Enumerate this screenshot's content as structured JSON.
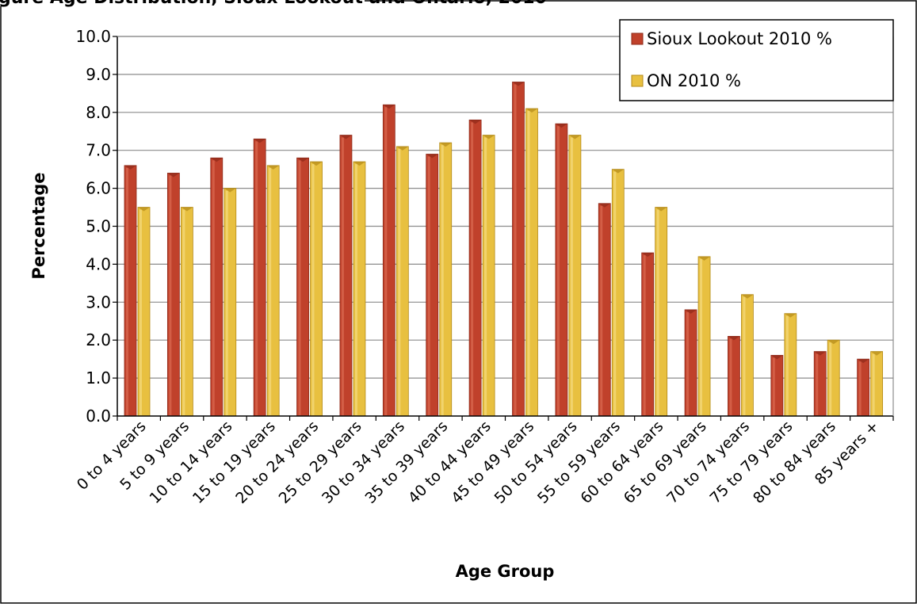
{
  "cut_title": "gure  Age Distribution, Sioux Lookout and Ontario, 2010",
  "colors": {
    "series1": "#c0412b",
    "series1_dark": "#8e2a1a",
    "series1_light": "#e07258",
    "series2": "#e8c040",
    "series2_dark": "#b48a18",
    "series2_light": "#f6e08c",
    "grid": "#8c8c8c",
    "axis": "#000000"
  },
  "chart_data": {
    "type": "bar",
    "title": "",
    "xlabel": "Age Group",
    "ylabel": "Percentage",
    "ylim": [
      0,
      10
    ],
    "ytick_step": 1,
    "ytick_labels": [
      "0.0",
      "1.0",
      "2.0",
      "3.0",
      "4.0",
      "5.0",
      "6.0",
      "7.0",
      "8.0",
      "9.0",
      "10.0"
    ],
    "grid": true,
    "legend_position": "top-right",
    "categories": [
      "0 to 4 years",
      "5 to 9 years",
      "10 to 14 years",
      "15 to 19 years",
      "20 to 24 years",
      "25 to 29 years",
      "30 to 34 years",
      "35 to 39 years",
      "40 to 44 years",
      "45 to 49 years",
      "50 to 54 years",
      "55 to 59 years",
      "60 to 64 years",
      "65 to 69 years",
      "70 to 74 years",
      "75 to 79 years",
      "80 to 84 years",
      "85 years +"
    ],
    "series": [
      {
        "name": "Sioux Lookout 2010 %",
        "values": [
          6.6,
          6.4,
          6.8,
          7.3,
          6.8,
          7.4,
          8.2,
          6.9,
          7.8,
          8.8,
          7.7,
          5.6,
          4.3,
          2.8,
          2.1,
          1.6,
          1.7,
          1.5
        ]
      },
      {
        "name": "ON 2010 %",
        "values": [
          5.5,
          5.5,
          6.0,
          6.6,
          6.7,
          6.7,
          7.1,
          7.2,
          7.4,
          8.1,
          7.4,
          6.5,
          5.5,
          4.2,
          3.2,
          2.7,
          2.0,
          1.7
        ]
      }
    ]
  }
}
